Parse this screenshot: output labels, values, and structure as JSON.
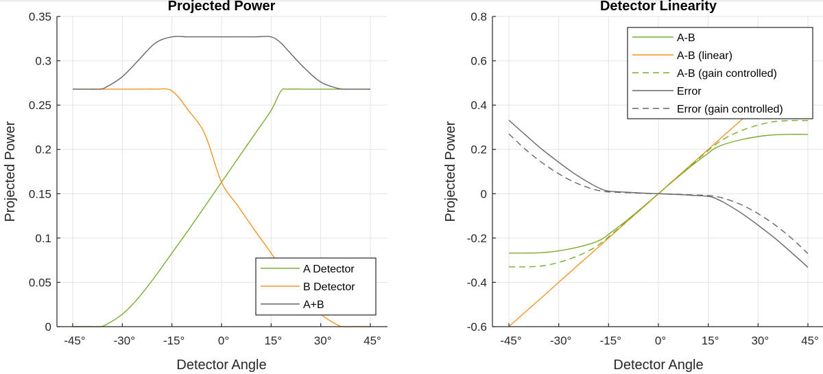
{
  "chart_data": [
    {
      "type": "line",
      "title": "Projected Power",
      "xlabel": "Detector Angle",
      "ylabel": "Projected Power",
      "xlim": [
        -45,
        45
      ],
      "ylim": [
        0,
        0.35
      ],
      "xticks": [
        -45,
        -30,
        -15,
        0,
        15,
        30,
        45
      ],
      "xtick_labels": [
        "-45°",
        "-30°",
        "-15°",
        "0°",
        "15°",
        "30°",
        "45°"
      ],
      "yticks": [
        0,
        0.05,
        0.1,
        0.15,
        0.2,
        0.25,
        0.3,
        0.35
      ],
      "ytick_labels": [
        "0",
        "0.05",
        "0.1",
        "0.15",
        "0.2",
        "0.25",
        "0.3",
        "0.35"
      ],
      "grid": true,
      "legend_position": "southeast",
      "x": [
        -45,
        -40,
        -37,
        -35,
        -30,
        -25,
        -20,
        -15,
        -10,
        -5,
        0,
        5,
        10,
        15,
        18,
        20,
        25,
        30,
        35,
        37,
        40,
        45
      ],
      "series": [
        {
          "name": "A Detector",
          "color": "#77ac30",
          "dash": "solid",
          "values": [
            0,
            0,
            0,
            0.002,
            0.014,
            0.033,
            0.057,
            0.083,
            0.109,
            0.136,
            0.163,
            0.19,
            0.217,
            0.244,
            0.266,
            0.268,
            0.268,
            0.268,
            0.268,
            0.268,
            0.268,
            0.268
          ]
        },
        {
          "name": "B Detector",
          "color": "#f39425",
          "dash": "solid",
          "values": [
            0.268,
            0.268,
            0.268,
            0.268,
            0.268,
            0.268,
            0.268,
            0.266,
            0.244,
            0.217,
            0.163,
            0.136,
            0.109,
            0.083,
            0.066,
            0.057,
            0.033,
            0.014,
            0.002,
            0,
            0,
            0
          ]
        },
        {
          "name": "A+B",
          "color": "#666666",
          "dash": "solid",
          "values": [
            0.268,
            0.268,
            0.268,
            0.27,
            0.282,
            0.301,
            0.32,
            0.327,
            0.327,
            0.327,
            0.327,
            0.327,
            0.327,
            0.327,
            0.32,
            0.312,
            0.292,
            0.276,
            0.269,
            0.268,
            0.268,
            0.268
          ]
        }
      ]
    },
    {
      "type": "line",
      "title": "Detector Linearity",
      "xlabel": "Detector Angle",
      "ylabel": "Projected Power",
      "xlim": [
        -45,
        50
      ],
      "ylim": [
        -0.6,
        0.8
      ],
      "xticks": [
        -45,
        -30,
        -15,
        0,
        15,
        30,
        45
      ],
      "xtick_labels": [
        "-45°",
        "-30°",
        "-15°",
        "0°",
        "15°",
        "30°",
        "45°"
      ],
      "yticks": [
        -0.6,
        -0.4,
        -0.2,
        0,
        0.2,
        0.4,
        0.6,
        0.8
      ],
      "ytick_labels": [
        "-0.6",
        "-0.4",
        "-0.2",
        "0",
        "0.2",
        "0.4",
        "0.6",
        "0.8"
      ],
      "grid": true,
      "legend_position": "northeast",
      "x": [
        -45,
        -40,
        -35,
        -30,
        -25,
        -20,
        -17,
        -15,
        -10,
        -5,
        0,
        5,
        10,
        15,
        17,
        20,
        25,
        30,
        35,
        40,
        45
      ],
      "series": [
        {
          "name": "A-B",
          "color": "#77ac30",
          "dash": "solid",
          "values": [
            -0.268,
            -0.268,
            -0.266,
            -0.258,
            -0.244,
            -0.224,
            -0.205,
            -0.183,
            -0.126,
            -0.064,
            0,
            0.064,
            0.126,
            0.183,
            0.205,
            0.224,
            0.244,
            0.258,
            0.266,
            0.268,
            0.268
          ]
        },
        {
          "name": "A-B (linear)",
          "color": "#f39425",
          "dash": "solid",
          "values": [
            -0.6,
            -0.533,
            -0.467,
            -0.4,
            -0.333,
            -0.267,
            -0.227,
            -0.2,
            -0.133,
            -0.067,
            0,
            0.067,
            0.133,
            0.2,
            0.227,
            0.267,
            0.333,
            0.4,
            0.467,
            0.533,
            0.6
          ]
        },
        {
          "name": "A-B (gain controlled)",
          "color": "#77ac30",
          "dash": "dashed",
          "values": [
            -0.33,
            -0.33,
            -0.326,
            -0.31,
            -0.285,
            -0.25,
            -0.22,
            -0.195,
            -0.13,
            -0.065,
            0,
            0.065,
            0.13,
            0.195,
            0.22,
            0.25,
            0.285,
            0.31,
            0.326,
            0.33,
            0.33
          ]
        },
        {
          "name": "Error",
          "color": "#666666",
          "dash": "solid",
          "values": [
            0.332,
            0.265,
            0.2,
            0.142,
            0.088,
            0.042,
            0.02,
            0.012,
            0.007,
            0.003,
            0,
            -0.003,
            -0.007,
            -0.012,
            -0.02,
            -0.042,
            -0.088,
            -0.142,
            -0.2,
            -0.265,
            -0.332
          ]
        },
        {
          "name": "Error (gain controlled)",
          "color": "#666666",
          "dash": "dashed",
          "values": [
            0.27,
            0.2,
            0.14,
            0.09,
            0.05,
            0.022,
            0.012,
            0.008,
            0.005,
            0.002,
            0,
            -0.002,
            -0.005,
            -0.008,
            -0.012,
            -0.022,
            -0.05,
            -0.09,
            -0.14,
            -0.2,
            -0.27
          ]
        }
      ]
    }
  ]
}
